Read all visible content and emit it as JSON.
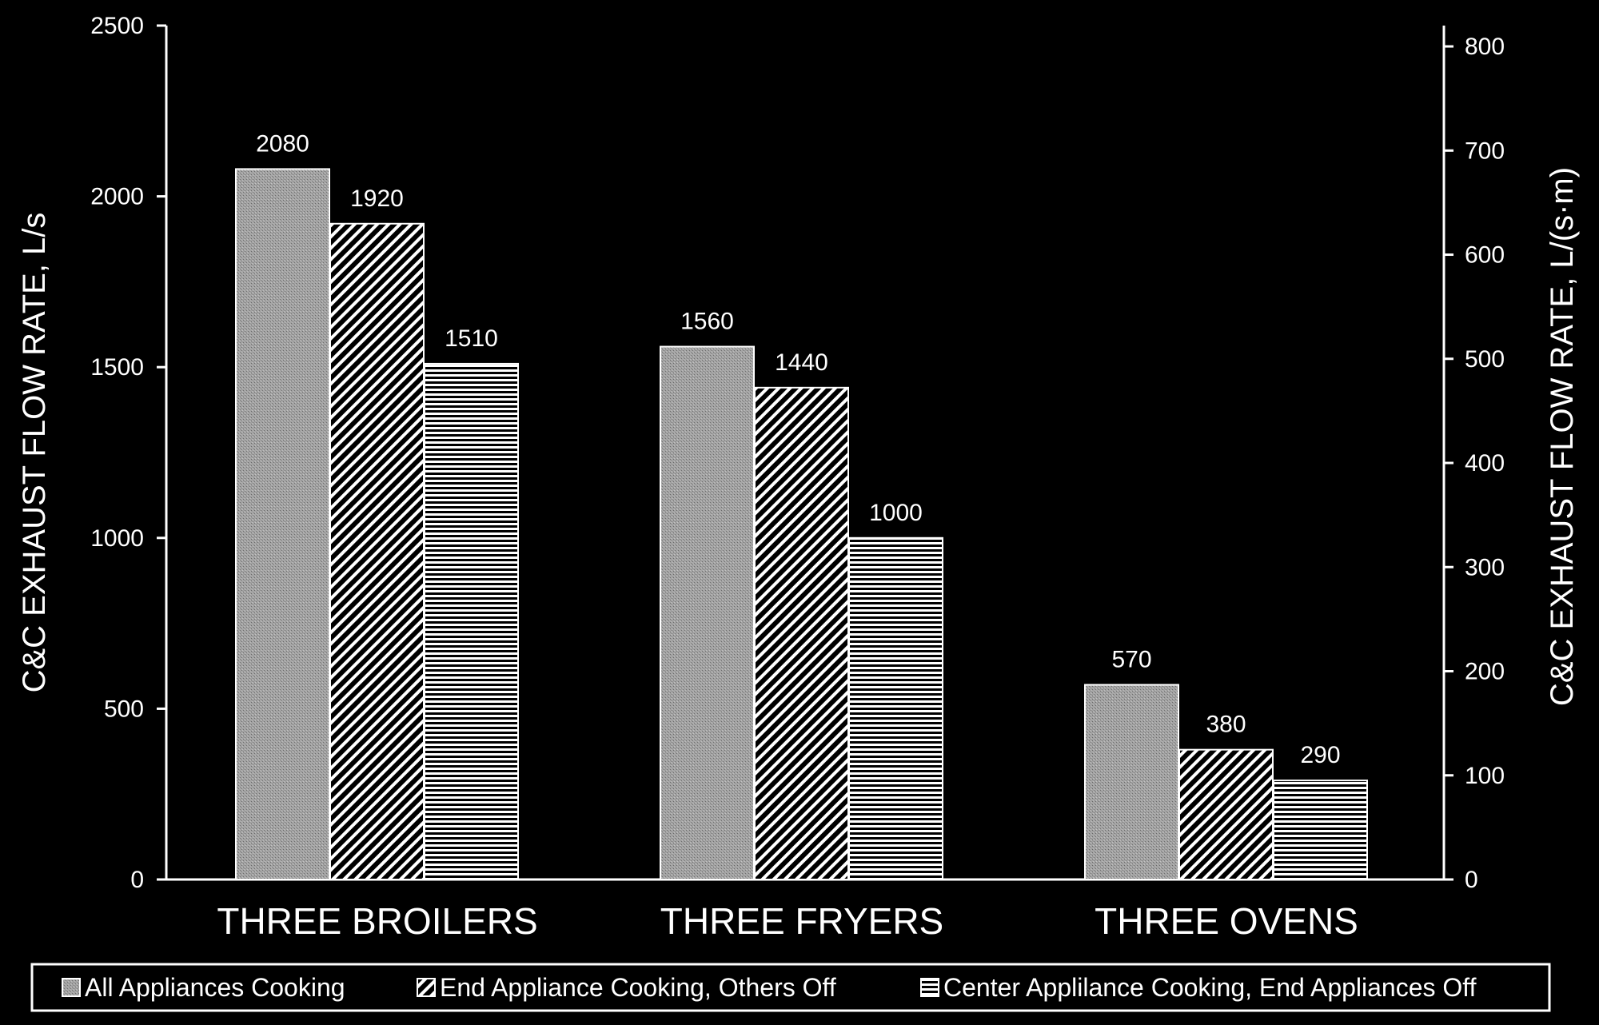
{
  "chart_data": {
    "type": "bar",
    "categories": [
      "THREE BROILERS",
      "THREE FRYERS",
      "THREE OVENS"
    ],
    "series": [
      {
        "name": "All Appliances Cooking",
        "values": [
          2080,
          1560,
          570
        ],
        "pattern": "stipple"
      },
      {
        "name": "End Appliance Cooking, Others Off",
        "values": [
          1920,
          1440,
          380
        ],
        "pattern": "diagonal"
      },
      {
        "name": "Center Applilance Cooking, End Appliances Off",
        "values": [
          1510,
          1000,
          290
        ],
        "pattern": "horizontal"
      }
    ],
    "ylabel": "C&C EXHAUST FLOW RATE, L/s",
    "y2label": "C&C EXHAUST FLOW RATE, L/(s·m)",
    "ylim": [
      0,
      2500
    ],
    "yticks": [
      0,
      500,
      1000,
      1500,
      2000,
      2500
    ],
    "y2lim": [
      0,
      820
    ],
    "y2ticks": [
      0,
      100,
      200,
      300,
      400,
      500,
      600,
      700,
      800
    ],
    "grid": false,
    "legend_position": "bottom",
    "colors": {
      "background": "#000000",
      "foreground": "#ffffff",
      "bar_fill": "#9a9a9a"
    }
  }
}
